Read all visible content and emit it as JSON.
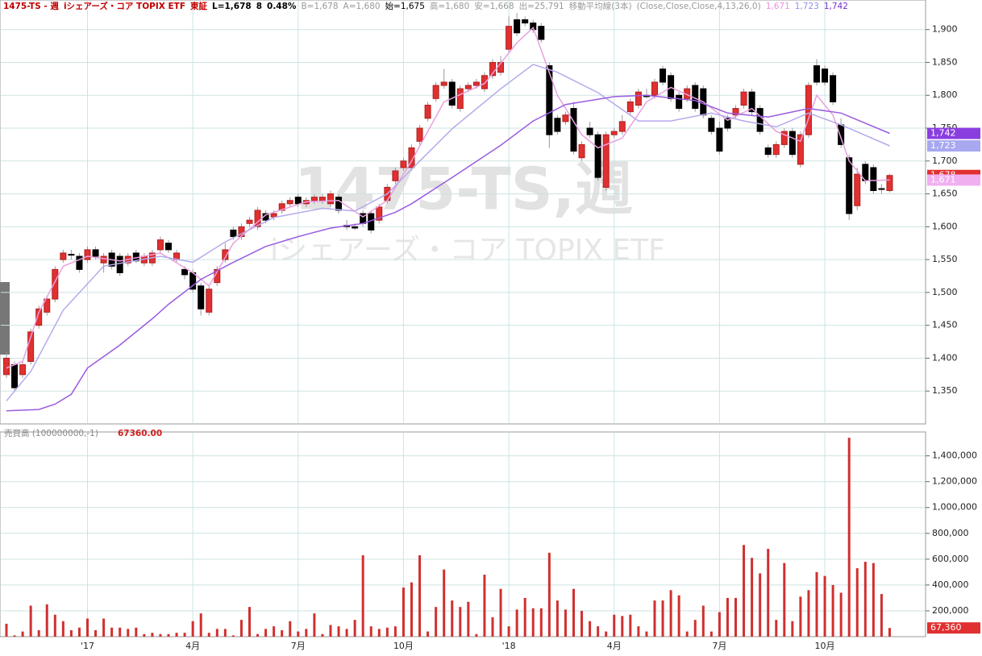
{
  "chart_data": [
    {
      "type": "candlestick",
      "header_items": [
        {
          "text": "1475-TS - 週",
          "color": "#c00000"
        },
        {
          "text": "iシェアーズ・コア TOPIX ETF",
          "color": "#c00000"
        },
        {
          "text": "東証",
          "color": "#c00000"
        },
        {
          "text": "L=1,678",
          "color": "#000000"
        },
        {
          "text": "8",
          "color": "#000000"
        },
        {
          "text": "0.48%",
          "color": "#000000"
        },
        {
          "text": "B=1,678",
          "color": "#999999"
        },
        {
          "text": "A=1,680",
          "color": "#999999"
        },
        {
          "text": "始=1,675",
          "color": "#000000"
        },
        {
          "text": "高=1,680",
          "color": "#999999"
        },
        {
          "text": "安=1,668",
          "color": "#999999"
        },
        {
          "text": "出=25,791",
          "color": "#999999"
        },
        {
          "text": "移動平均線(3本)",
          "color": "#999999"
        },
        {
          "text": "(Close,Close,Close,4,13,26,0)",
          "color": "#999999"
        },
        {
          "text": "1,671",
          "color": "#e890e0"
        },
        {
          "text": "1,723",
          "color": "#9090e0"
        },
        {
          "text": "1,742",
          "color": "#7030d0"
        }
      ],
      "watermark": [
        "1475-TS,週",
        "iシェアーズ・コア TOPIX ETF"
      ],
      "categories": [
        null,
        null,
        null,
        null,
        null,
        null,
        null,
        null,
        null,
        null,
        "'17",
        null,
        null,
        null,
        null,
        null,
        null,
        null,
        null,
        null,
        null,
        null,
        null,
        "4月",
        null,
        null,
        null,
        null,
        null,
        null,
        null,
        null,
        null,
        null,
        null,
        null,
        "7月",
        null,
        null,
        null,
        null,
        null,
        null,
        null,
        null,
        null,
        null,
        null,
        null,
        "10月",
        null,
        null,
        null,
        null,
        null,
        null,
        null,
        null,
        null,
        null,
        null,
        null,
        "'18",
        null,
        null,
        null,
        null,
        null,
        null,
        null,
        null,
        null,
        null,
        null,
        null,
        "4月",
        null,
        null,
        null,
        null,
        null,
        null,
        null,
        null,
        null,
        null,
        null,
        null,
        "7月",
        null,
        null,
        null,
        null,
        null,
        null,
        null,
        null,
        null,
        null,
        null,
        null,
        "10月",
        null,
        null,
        null,
        null,
        null,
        null,
        null,
        null
      ],
      "open": [
        1375,
        1390,
        1375,
        1395,
        1450,
        1470,
        1490,
        1550,
        1558,
        1555,
        1550,
        1565,
        1545,
        1560,
        1555,
        1545,
        1560,
        1545,
        1545,
        1565,
        1575,
        1550,
        1535,
        1530,
        1510,
        1470,
        1515,
        1550,
        1595,
        1585,
        1605,
        1600,
        1620,
        1615,
        1625,
        1635,
        1645,
        1635,
        1640,
        1640,
        1635,
        1645,
        1602,
        1600,
        1620,
        1620,
        1610,
        1640,
        1670,
        1690,
        1690,
        1730,
        1765,
        1795,
        1815,
        1820,
        1780,
        1810,
        1815,
        1810,
        1830,
        1835,
        1870,
        1915,
        1915,
        1910,
        1905,
        1845,
        1765,
        1760,
        1780,
        1705,
        1750,
        1740,
        1660,
        1740,
        1745,
        1775,
        1785,
        1800,
        1800,
        1840,
        1830,
        1800,
        1795,
        1815,
        1810,
        1765,
        1750,
        1765,
        1770,
        1785,
        1805,
        1780,
        1720,
        1710,
        1725,
        1745,
        1695,
        1740,
        1845,
        1840,
        1830,
        1755,
        1705,
        1632,
        1695,
        1690,
        1658,
        1655
      ],
      "high": [
        1410,
        1395,
        1395,
        1445,
        1480,
        1495,
        1540,
        1565,
        1565,
        1560,
        1570,
        1570,
        1560,
        1565,
        1560,
        1560,
        1565,
        1560,
        1565,
        1585,
        1580,
        1565,
        1540,
        1535,
        1515,
        1510,
        1540,
        1575,
        1600,
        1605,
        1615,
        1630,
        1625,
        1625,
        1640,
        1645,
        1650,
        1645,
        1650,
        1650,
        1655,
        1650,
        1610,
        1605,
        1625,
        1625,
        1635,
        1665,
        1690,
        1705,
        1725,
        1755,
        1790,
        1820,
        1840,
        1825,
        1815,
        1820,
        1825,
        1835,
        1855,
        1860,
        1920,
        1925,
        1920,
        1915,
        1910,
        1850,
        1770,
        1775,
        1790,
        1730,
        1760,
        1745,
        1745,
        1750,
        1770,
        1795,
        1810,
        1810,
        1825,
        1845,
        1835,
        1805,
        1815,
        1820,
        1815,
        1770,
        1760,
        1770,
        1785,
        1810,
        1810,
        1785,
        1725,
        1730,
        1750,
        1750,
        1745,
        1820,
        1855,
        1845,
        1835,
        1765,
        1710,
        1690,
        1700,
        1695,
        1665,
        1680
      ],
      "low": [
        1370,
        1350,
        1370,
        1390,
        1445,
        1465,
        1485,
        1545,
        1550,
        1530,
        1545,
        1550,
        1530,
        1535,
        1525,
        1540,
        1545,
        1540,
        1540,
        1560,
        1560,
        1545,
        1520,
        1500,
        1465,
        1465,
        1510,
        1545,
        1580,
        1580,
        1600,
        1595,
        1605,
        1610,
        1620,
        1630,
        1630,
        1630,
        1635,
        1635,
        1630,
        1620,
        1595,
        1595,
        1600,
        1590,
        1605,
        1635,
        1665,
        1685,
        1685,
        1725,
        1760,
        1790,
        1810,
        1780,
        1775,
        1805,
        1810,
        1805,
        1825,
        1830,
        1865,
        1890,
        1905,
        1895,
        1880,
        1720,
        1740,
        1755,
        1710,
        1700,
        1735,
        1670,
        1655,
        1735,
        1740,
        1770,
        1780,
        1795,
        1795,
        1815,
        1790,
        1775,
        1790,
        1775,
        1765,
        1740,
        1710,
        1745,
        1765,
        1780,
        1770,
        1740,
        1705,
        1705,
        1720,
        1705,
        1690,
        1735,
        1815,
        1815,
        1785,
        1720,
        1610,
        1625,
        1665,
        1650,
        1650,
        1652
      ],
      "close": [
        1400,
        1355,
        1390,
        1440,
        1475,
        1490,
        1535,
        1560,
        1557,
        1535,
        1565,
        1555,
        1555,
        1540,
        1530,
        1555,
        1548,
        1555,
        1560,
        1580,
        1565,
        1560,
        1527,
        1505,
        1475,
        1505,
        1535,
        1565,
        1585,
        1600,
        1610,
        1625,
        1610,
        1620,
        1635,
        1640,
        1635,
        1640,
        1645,
        1645,
        1650,
        1625,
        1600,
        1598,
        1605,
        1595,
        1630,
        1660,
        1685,
        1700,
        1720,
        1750,
        1785,
        1815,
        1820,
        1785,
        1810,
        1815,
        1820,
        1830,
        1850,
        1850,
        1905,
        1895,
        1910,
        1900,
        1885,
        1740,
        1745,
        1770,
        1715,
        1725,
        1740,
        1675,
        1740,
        1745,
        1760,
        1790,
        1805,
        1798,
        1820,
        1820,
        1795,
        1780,
        1810,
        1780,
        1770,
        1745,
        1715,
        1750,
        1780,
        1805,
        1775,
        1745,
        1710,
        1725,
        1745,
        1710,
        1740,
        1815,
        1820,
        1820,
        1790,
        1725,
        1620,
        1680,
        1670,
        1655,
        1657,
        1678
      ],
      "up_color": "#e03030",
      "down_color": "#000000",
      "lines": [
        {
          "color": "#e8a0e0",
          "x": [
            0,
            2,
            4,
            7,
            10,
            14,
            19,
            23,
            25,
            28,
            32,
            37,
            41,
            44,
            47,
            50,
            54,
            59,
            63,
            65,
            68,
            71,
            73,
            76,
            79,
            82,
            86,
            89,
            92,
            95,
            98,
            100,
            102,
            104,
            106,
            109
          ],
          "values": [
            1385,
            1395,
            1470,
            1540,
            1555,
            1548,
            1560,
            1530,
            1510,
            1575,
            1618,
            1638,
            1640,
            1615,
            1640,
            1700,
            1790,
            1818,
            1880,
            1903,
            1800,
            1740,
            1720,
            1735,
            1790,
            1812,
            1790,
            1762,
            1780,
            1745,
            1730,
            1800,
            1770,
            1700,
            1670,
            1671
          ]
        },
        {
          "color": "#b4aaec",
          "x": [
            0,
            3,
            7,
            12,
            19,
            23,
            27,
            33,
            39,
            43,
            47,
            51,
            55,
            61,
            65,
            68,
            73,
            78,
            82,
            87,
            91,
            95,
            99,
            103,
            109
          ],
          "values": [
            1335,
            1380,
            1473,
            1540,
            1555,
            1546,
            1577,
            1614,
            1628,
            1624,
            1650,
            1700,
            1749,
            1810,
            1847,
            1835,
            1804,
            1761,
            1761,
            1773,
            1761,
            1752,
            1773,
            1755,
            1723
          ]
        },
        {
          "color": "#9a5ce0",
          "x": [
            0,
            4,
            6,
            8,
            10,
            14,
            18,
            20,
            24,
            28,
            32,
            36,
            40,
            44,
            48,
            50,
            55,
            61,
            65,
            69,
            75,
            79,
            85,
            89,
            94,
            99,
            103,
            109
          ],
          "values": [
            1320,
            1322,
            1330,
            1345,
            1385,
            1420,
            1460,
            1482,
            1520,
            1546,
            1570,
            1585,
            1598,
            1605,
            1622,
            1635,
            1675,
            1724,
            1761,
            1786,
            1798,
            1800,
            1792,
            1773,
            1767,
            1780,
            1773,
            1742
          ]
        }
      ],
      "markers": [
        {
          "value": 1742,
          "label": "1,742",
          "color": "#8a3ee0"
        },
        {
          "value": 1723,
          "label": "1,723",
          "color": "#a8a8f0"
        },
        {
          "value": 1678,
          "label": "1,678",
          "color": "#e03030"
        },
        {
          "value": 1671,
          "label": "1,671",
          "color": "#f0b0f0"
        }
      ],
      "ylim": [
        1300,
        1945
      ],
      "yticks": [
        {
          "value": 1350,
          "label": "1,350"
        },
        {
          "value": 1400,
          "label": "1,400"
        },
        {
          "value": 1450,
          "label": "1,450"
        },
        {
          "value": 1500,
          "label": "1,500"
        },
        {
          "value": 1550,
          "label": "1,550"
        },
        {
          "value": 1600,
          "label": "1,600"
        },
        {
          "value": 1650,
          "label": "1,650"
        },
        {
          "value": 1700,
          "label": "1,700"
        },
        {
          "value": 1750,
          "label": "1,750"
        },
        {
          "value": 1800,
          "label": "1,800"
        },
        {
          "value": 1850,
          "label": "1,850"
        },
        {
          "value": 1900,
          "label": "1,900"
        }
      ],
      "grid": true
    },
    {
      "type": "bar",
      "title": "売買高 (100000000,-1)",
      "last_label": "67360.00",
      "values": [
        100000,
        10000,
        40000,
        240000,
        50000,
        250000,
        170000,
        120000,
        50000,
        70000,
        140000,
        50000,
        140000,
        70000,
        70000,
        60000,
        70000,
        20000,
        30000,
        20000,
        20000,
        30000,
        30000,
        120000,
        180000,
        30000,
        60000,
        60000,
        10000,
        130000,
        230000,
        20000,
        60000,
        80000,
        50000,
        120000,
        40000,
        60000,
        180000,
        20000,
        90000,
        80000,
        60000,
        130000,
        630000,
        80000,
        60000,
        70000,
        80000,
        380000,
        420000,
        630000,
        40000,
        230000,
        520000,
        280000,
        230000,
        270000,
        20000,
        480000,
        150000,
        370000,
        80000,
        210000,
        300000,
        220000,
        220000,
        650000,
        280000,
        210000,
        370000,
        200000,
        120000,
        80000,
        40000,
        170000,
        160000,
        170000,
        80000,
        40000,
        280000,
        280000,
        360000,
        320000,
        40000,
        130000,
        240000,
        40000,
        190000,
        300000,
        300000,
        710000,
        610000,
        490000,
        680000,
        130000,
        570000,
        120000,
        310000,
        360000,
        500000,
        470000,
        400000,
        340000,
        1540000,
        530000,
        580000,
        570000,
        330000,
        67360
      ],
      "color": "#d03030",
      "markers": [
        {
          "value": 67360,
          "label": "67,360",
          "color": "#e03030"
        }
      ],
      "ylim": [
        0,
        1585000
      ],
      "yticks": [
        {
          "value": 200000,
          "label": "200,000"
        },
        {
          "value": 400000,
          "label": "400,000"
        },
        {
          "value": 600000,
          "label": "600,000"
        },
        {
          "value": 800000,
          "label": "800,000"
        },
        {
          "value": 1000000,
          "label": "1,000,000"
        },
        {
          "value": 1200000,
          "label": "1,200,000"
        },
        {
          "value": 1400000,
          "label": "1,400,000"
        }
      ],
      "grid": true
    }
  ]
}
